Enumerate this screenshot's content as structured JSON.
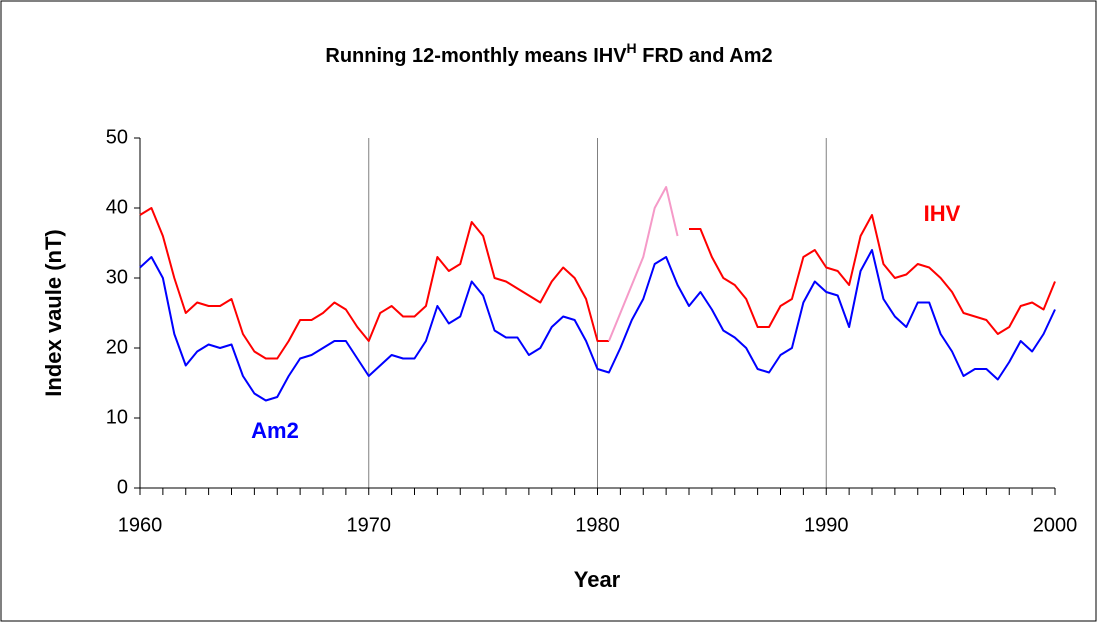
{
  "chart_data": {
    "type": "line",
    "title": [
      "Running 12-monthly means IHV",
      "H",
      " FRD and Am2"
    ],
    "x_label": "Year",
    "y_label": "Index vaule (nT)",
    "xlim": [
      1960,
      2000
    ],
    "xticks": [
      1960,
      1970,
      1980,
      1990,
      2000
    ],
    "xminorticks": [
      1961,
      1962,
      1963,
      1964,
      1965,
      1966,
      1967,
      1968,
      1969,
      1971,
      1972,
      1973,
      1974,
      1975,
      1976,
      1977,
      1978,
      1979,
      1981,
      1982,
      1983,
      1984,
      1985,
      1986,
      1987,
      1988,
      1989,
      1991,
      1992,
      1993,
      1994,
      1995,
      1996,
      1997,
      1998,
      1999
    ],
    "ylim": [
      0,
      50
    ],
    "yticks": [
      0,
      10,
      20,
      30,
      40,
      50
    ],
    "grid": "x",
    "x": [
      1960,
      1960.5,
      1961,
      1961.5,
      1962,
      1962.5,
      1963,
      1963.5,
      1964,
      1964.5,
      1965,
      1965.5,
      1966,
      1966.5,
      1967,
      1967.5,
      1968,
      1968.5,
      1969,
      1969.5,
      1970,
      1970.5,
      1971,
      1971.5,
      1972,
      1972.5,
      1973,
      1973.5,
      1974,
      1974.5,
      1975,
      1975.5,
      1976,
      1976.5,
      1977,
      1977.5,
      1978,
      1978.5,
      1979,
      1979.5,
      1980,
      1980.5,
      1981,
      1981.5,
      1982,
      1982.5,
      1983,
      1983.5,
      1984,
      1984.5,
      1985,
      1985.5,
      1986,
      1986.5,
      1987,
      1987.5,
      1988,
      1988.5,
      1989,
      1989.5,
      1990,
      1990.5,
      1991,
      1991.5,
      1992,
      1992.5,
      1993,
      1993.5,
      1994,
      1994.5,
      1995,
      1995.5,
      1996,
      1996.5,
      1997,
      1997.5,
      1998,
      1998.5,
      1999,
      1999.5,
      2000
    ],
    "series": [
      {
        "name": "IHV",
        "color": "#ff0000",
        "values": [
          39,
          40,
          36,
          30,
          25,
          26.5,
          26,
          26,
          27,
          22,
          19.5,
          18.5,
          18.5,
          21,
          24,
          24,
          25,
          26.5,
          25.5,
          23,
          21,
          25,
          26,
          24.5,
          24.5,
          26,
          33,
          31,
          32,
          38,
          36,
          30,
          29.5,
          28.5,
          27.5,
          26.5,
          29.5,
          31.5,
          30,
          27,
          21,
          21,
          null,
          null,
          null,
          null,
          null,
          null,
          37,
          37,
          33,
          30,
          29,
          27,
          23,
          23,
          26,
          27,
          33,
          34,
          31.5,
          31,
          29,
          36,
          39,
          32,
          30,
          30.5,
          32,
          31.5,
          30,
          28,
          25,
          24.5,
          24,
          22,
          23,
          26,
          26.5,
          25.5,
          29.5
        ]
      },
      {
        "name": "Am2",
        "color": "#0000ff",
        "values": [
          31.5,
          33,
          30,
          22,
          17.5,
          19.5,
          20.5,
          20,
          20.5,
          16,
          13.5,
          12.5,
          13,
          16,
          18.5,
          19,
          20,
          21,
          21,
          18.5,
          16,
          17.5,
          19,
          18.5,
          18.5,
          21,
          26,
          23.5,
          24.5,
          29.5,
          27.5,
          22.5,
          21.5,
          21.5,
          19,
          20,
          23,
          24.5,
          24,
          21,
          17,
          16.5,
          20,
          24,
          27,
          32,
          33,
          29,
          26,
          28,
          25.5,
          22.5,
          21.5,
          20,
          17,
          16.5,
          19,
          20,
          26.5,
          29.5,
          28,
          27.5,
          23,
          31,
          34,
          27,
          24.5,
          23,
          26.5,
          26.5,
          22,
          19.5,
          16,
          17,
          17,
          15.5,
          18,
          21,
          19.5,
          22,
          25.5
        ]
      },
      {
        "color": "#f59ac8",
        "values": [
          null,
          null,
          null,
          null,
          null,
          null,
          null,
          null,
          null,
          null,
          null,
          null,
          null,
          null,
          null,
          null,
          null,
          null,
          null,
          null,
          null,
          null,
          null,
          null,
          null,
          null,
          null,
          null,
          null,
          null,
          null,
          null,
          null,
          null,
          null,
          null,
          null,
          null,
          null,
          null,
          null,
          21,
          25,
          29,
          33,
          40,
          43,
          36,
          null,
          null,
          null,
          null,
          null,
          null,
          null,
          null,
          null,
          null,
          null,
          null,
          null,
          null,
          null,
          null,
          null,
          null,
          null,
          null,
          null,
          null,
          null,
          null,
          null,
          null,
          null,
          null,
          null,
          null,
          null,
          null,
          null
        ]
      }
    ]
  }
}
